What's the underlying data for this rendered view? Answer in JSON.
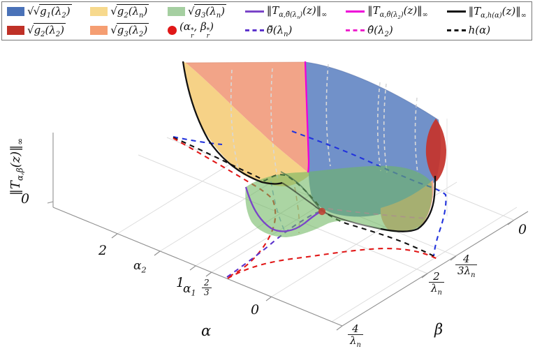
{
  "colors": {
    "legend_blue": "#4a72b8",
    "legend_red": "#bf3127",
    "legend_yellow": "#f7d98d",
    "legend_orange": "#f59e72",
    "legend_green": "#a5cfa1",
    "legend_dot": "#e01818",
    "purple_solid": "#7a45c8",
    "purple_dash": "#5c33cc",
    "magenta": "#ee00d8",
    "magenta_dash": "#ee22cc",
    "black": "#111111",
    "surf_blue": "#7191c9",
    "surf_yellow": "#f6d287",
    "surf_orange": "#f2a488",
    "surf_green": "#6eb761",
    "surf_red": "#c5342c",
    "blue_dash": "#2233dd",
    "red_dash": "#e11818",
    "dot": "#c04535",
    "axis": "#8f8f8f",
    "grid": "#dcdcdc",
    "wallgrid": "#e4e4e4",
    "surfgrid": "#d8d8d8",
    "lightblue_dash": "#88aadd",
    "salmon_dash": "#e8a080",
    "pink_dash": "#ff55cc",
    "fold": "#3f6b4a"
  },
  "legend": {
    "columns": [
      {
        "entries": [
          {
            "name": "g1-lambda2",
            "swatch": {
              "kind": "patch",
              "color": "legend_blue"
            },
            "math": [
              {
                "t2": "√",
                "cls": "sqrtsign"
              },
              {
                "sqrt": [
                  {
                    "t": "g"
                  },
                  {
                    "sub": [
                      {
                        "t": "1"
                      }
                    ]
                  },
                  {
                    "t": "(λ"
                  },
                  {
                    "sub": [
                      {
                        "t": "2"
                      }
                    ]
                  },
                  {
                    "t": ")"
                  }
                ]
              }
            ]
          },
          {
            "name": "g2-lambda2",
            "swatch": {
              "kind": "patch",
              "color": "legend_red"
            },
            "math": [
              {
                "sqrt": [
                  {
                    "t": "g"
                  },
                  {
                    "sub": [
                      {
                        "t": "2"
                      }
                    ]
                  },
                  {
                    "t": "(λ"
                  },
                  {
                    "sub": [
                      {
                        "t": "2"
                      }
                    ]
                  },
                  {
                    "t": ")"
                  }
                ]
              }
            ]
          }
        ]
      },
      {
        "entries": [
          {
            "name": "g2-lambdan",
            "swatch": {
              "kind": "patch",
              "color": "legend_yellow"
            },
            "math": [
              {
                "sqrt": [
                  {
                    "t": "g"
                  },
                  {
                    "sub": [
                      {
                        "t": "2"
                      }
                    ]
                  },
                  {
                    "t": "(λ"
                  },
                  {
                    "sub": [
                      {
                        "t": "n"
                      }
                    ]
                  },
                  {
                    "t": ")"
                  }
                ]
              }
            ]
          },
          {
            "name": "g3-lambda2",
            "swatch": {
              "kind": "patch",
              "color": "legend_orange"
            },
            "math": [
              {
                "sqrt": [
                  {
                    "t": "g"
                  },
                  {
                    "sub": [
                      {
                        "t": "3"
                      }
                    ]
                  },
                  {
                    "t": "(λ"
                  },
                  {
                    "sub": [
                      {
                        "t": "2"
                      }
                    ]
                  },
                  {
                    "t": ")"
                  }
                ]
              }
            ]
          }
        ]
      },
      {
        "entries": [
          {
            "name": "g3-lambdan",
            "swatch": {
              "kind": "patch",
              "color": "legend_green"
            },
            "math": [
              {
                "sqrt": [
                  {
                    "t": "g"
                  },
                  {
                    "sub": [
                      {
                        "t": "3"
                      }
                    ]
                  },
                  {
                    "t": "(λ"
                  },
                  {
                    "sub": [
                      {
                        "t": "n"
                      }
                    ]
                  },
                  {
                    "t": ")"
                  }
                ]
              }
            ]
          },
          {
            "name": "optimum-point",
            "swatch": {
              "kind": "dot",
              "color": "legend_dot"
            },
            "math": [
              {
                "t": "(α"
              },
              {
                "ss": [
                  "*",
                  "r"
                ]
              },
              {
                "t": ", β"
              },
              {
                "ss": [
                  "*",
                  "r"
                ]
              },
              {
                "t": ")"
              }
            ]
          }
        ]
      },
      {
        "entries": [
          {
            "name": "norm-theta-check",
            "swatch": {
              "kind": "line",
              "color": "purple_solid"
            },
            "math": [
              {
                "t": "‖T"
              },
              {
                "sub": [
                  {
                    "t": "α,θ̌(λ"
                  },
                  {
                    "sub": [
                      {
                        "t": "n"
                      }
                    ]
                  },
                  {
                    "t": ")"
                  }
                ]
              },
              {
                "t": "(z)‖"
              },
              {
                "sub": [
                  {
                    "t": "∞"
                  }
                ]
              }
            ]
          },
          {
            "name": "theta-check",
            "swatch": {
              "kind": "dash",
              "color": "purple_dash"
            },
            "math": [
              {
                "t": "θ̌(λ"
              },
              {
                "sub": [
                  {
                    "t": "n"
                  }
                ]
              },
              {
                "t": ")"
              }
            ]
          }
        ]
      },
      {
        "entries": [
          {
            "name": "norm-theta-hat",
            "swatch": {
              "kind": "line",
              "color": "magenta"
            },
            "math": [
              {
                "t": "‖T"
              },
              {
                "sub": [
                  {
                    "t": "α,θ̂(λ"
                  },
                  {
                    "sub": [
                      {
                        "t": "2"
                      }
                    ]
                  },
                  {
                    "t": ")"
                  }
                ]
              },
              {
                "t": "(z)‖"
              },
              {
                "sub": [
                  {
                    "t": "∞"
                  }
                ]
              }
            ]
          },
          {
            "name": "theta-hat",
            "swatch": {
              "kind": "dash",
              "color": "magenta_dash"
            },
            "math": [
              {
                "t": "θ̂(λ"
              },
              {
                "sub": [
                  {
                    "t": "2"
                  }
                ]
              },
              {
                "t": ")"
              }
            ]
          }
        ]
      },
      {
        "entries": [
          {
            "name": "norm-h-alpha",
            "swatch": {
              "kind": "line",
              "color": "black"
            },
            "math": [
              {
                "t": "‖T"
              },
              {
                "sub": [
                  {
                    "t": "α,h(α)"
                  }
                ]
              },
              {
                "t": "(z)‖"
              },
              {
                "sub": [
                  {
                    "t": "∞"
                  }
                ]
              }
            ]
          },
          {
            "name": "h-alpha",
            "swatch": {
              "kind": "dash",
              "color": "black"
            },
            "math": [
              {
                "t": "h(α)"
              }
            ]
          }
        ]
      }
    ]
  },
  "axes": {
    "z": {
      "label": [
        {
          "t": "‖T"
        },
        {
          "sub": [
            {
              "t": "α,β"
            }
          ]
        },
        {
          "t": "(z)‖"
        },
        {
          "sub": [
            {
              "t": "∞"
            }
          ]
        }
      ],
      "tick0": [
        {
          "t": "0"
        }
      ]
    },
    "alpha": {
      "label": "α",
      "tick_2": [
        {
          "t": "2"
        }
      ],
      "tick_alpha2": [
        {
          "t": "α"
        },
        {
          "sub": [
            {
              "t": "2"
            }
          ]
        }
      ],
      "tick_1": [
        {
          "t": "1"
        }
      ],
      "tick_alpha1": [
        {
          "t": "α"
        },
        {
          "sub": [
            {
              "t": "1"
            }
          ]
        }
      ],
      "tick_23": [
        {
          "frac": [
            [
              {
                "t": "2"
              }
            ],
            [
              {
                "t": "3"
              }
            ]
          ]
        }
      ],
      "tick_0": [
        {
          "t": "0"
        }
      ]
    },
    "beta": {
      "label": "β",
      "tick_4ln": [
        {
          "frac": [
            [
              {
                "t": "4"
              }
            ],
            [
              {
                "t": "λ"
              },
              {
                "sub": [
                  {
                    "t": "n"
                  }
                ]
              }
            ]
          ]
        }
      ],
      "tick_2ln": [
        {
          "frac": [
            [
              {
                "t": "2"
              }
            ],
            [
              {
                "t": "λ"
              },
              {
                "sub": [
                  {
                    "t": "n"
                  }
                ]
              }
            ]
          ]
        }
      ],
      "tick_43ln": [
        {
          "frac": [
            [
              {
                "t": "4"
              }
            ],
            [
              {
                "t": "3λ"
              },
              {
                "sub": [
                  {
                    "t": "n"
                  }
                ]
              }
            ]
          ]
        }
      ],
      "tick_0": [
        {
          "t": "0"
        }
      ]
    }
  },
  "chart_data": {
    "type": "surface3d",
    "title": "",
    "xlabel": "α",
    "ylabel": "β",
    "zlabel": "‖T_{α,β}(z)‖_∞",
    "x_ticks": [
      "2",
      "α₂",
      "1",
      "α₁",
      "2/3",
      "0"
    ],
    "y_ticks": [
      "4/λₙ",
      "2/λₙ",
      "4/(3λₙ)",
      "0"
    ],
    "z_ticks": [
      "0"
    ],
    "grid": true,
    "legend_position": "top",
    "surfaces": [
      {
        "name": "√g₁(λ₂)",
        "color": "blue",
        "description": "large right-hand cliff surface"
      },
      {
        "name": "√g₂(λₙ)",
        "color": "khaki yellow",
        "description": "front-left cliff surface"
      },
      {
        "name": "√g₃(λₙ)",
        "color": "green",
        "description": "translucent valley-floor bowl"
      },
      {
        "name": "√g₂(λ₂)",
        "color": "dark red",
        "description": "narrow sliver on right edge of blue cliff"
      },
      {
        "name": "√g₃(λ₂)",
        "color": "salmon orange",
        "description": "back-left sheet behind yellow; reappears under green at lower right (olive overlap)"
      }
    ],
    "curves_on_surface": [
      {
        "name": "‖T_{α,θ̌(λₙ)}(z)‖∞",
        "style": "solid",
        "color": "purple",
        "location": "U-shaped curve on green bowl ending at red marker"
      },
      {
        "name": "‖T_{α,θ̂(λ₂)}(z)‖∞",
        "style": "solid",
        "color": "magenta",
        "location": "near-vertical seam between orange and blue surfaces"
      },
      {
        "name": "‖T_{α,h(α)}(z)‖∞",
        "style": "solid",
        "color": "black",
        "location": "left rim of yellow cliff, along valley, climbing right cliff"
      }
    ],
    "curves_on_floor": [
      {
        "name": "θ̌(λₙ)",
        "style": "dashed",
        "color": "purple",
        "description": "from α=2/3 tick toward red marker"
      },
      {
        "name": "θ̂(λ₂)",
        "style": "dashed",
        "color": "magenta/red",
        "description": "hooked arc from α=2/3 tick and wide arc to β=2/λₙ"
      },
      {
        "name": "h(α)",
        "style": "dashed",
        "color": "black",
        "description": "from left corner across floor to β=2/λₙ"
      },
      {
        "name": "projection",
        "style": "dashed",
        "color": "blue",
        "description": "from left corner, around right side of surfaces down to floor"
      }
    ],
    "marker": {
      "name": "(α*ᵣ, β*ᵣ)",
      "style": "filled red circle",
      "location": "bottom of green valley"
    }
  }
}
